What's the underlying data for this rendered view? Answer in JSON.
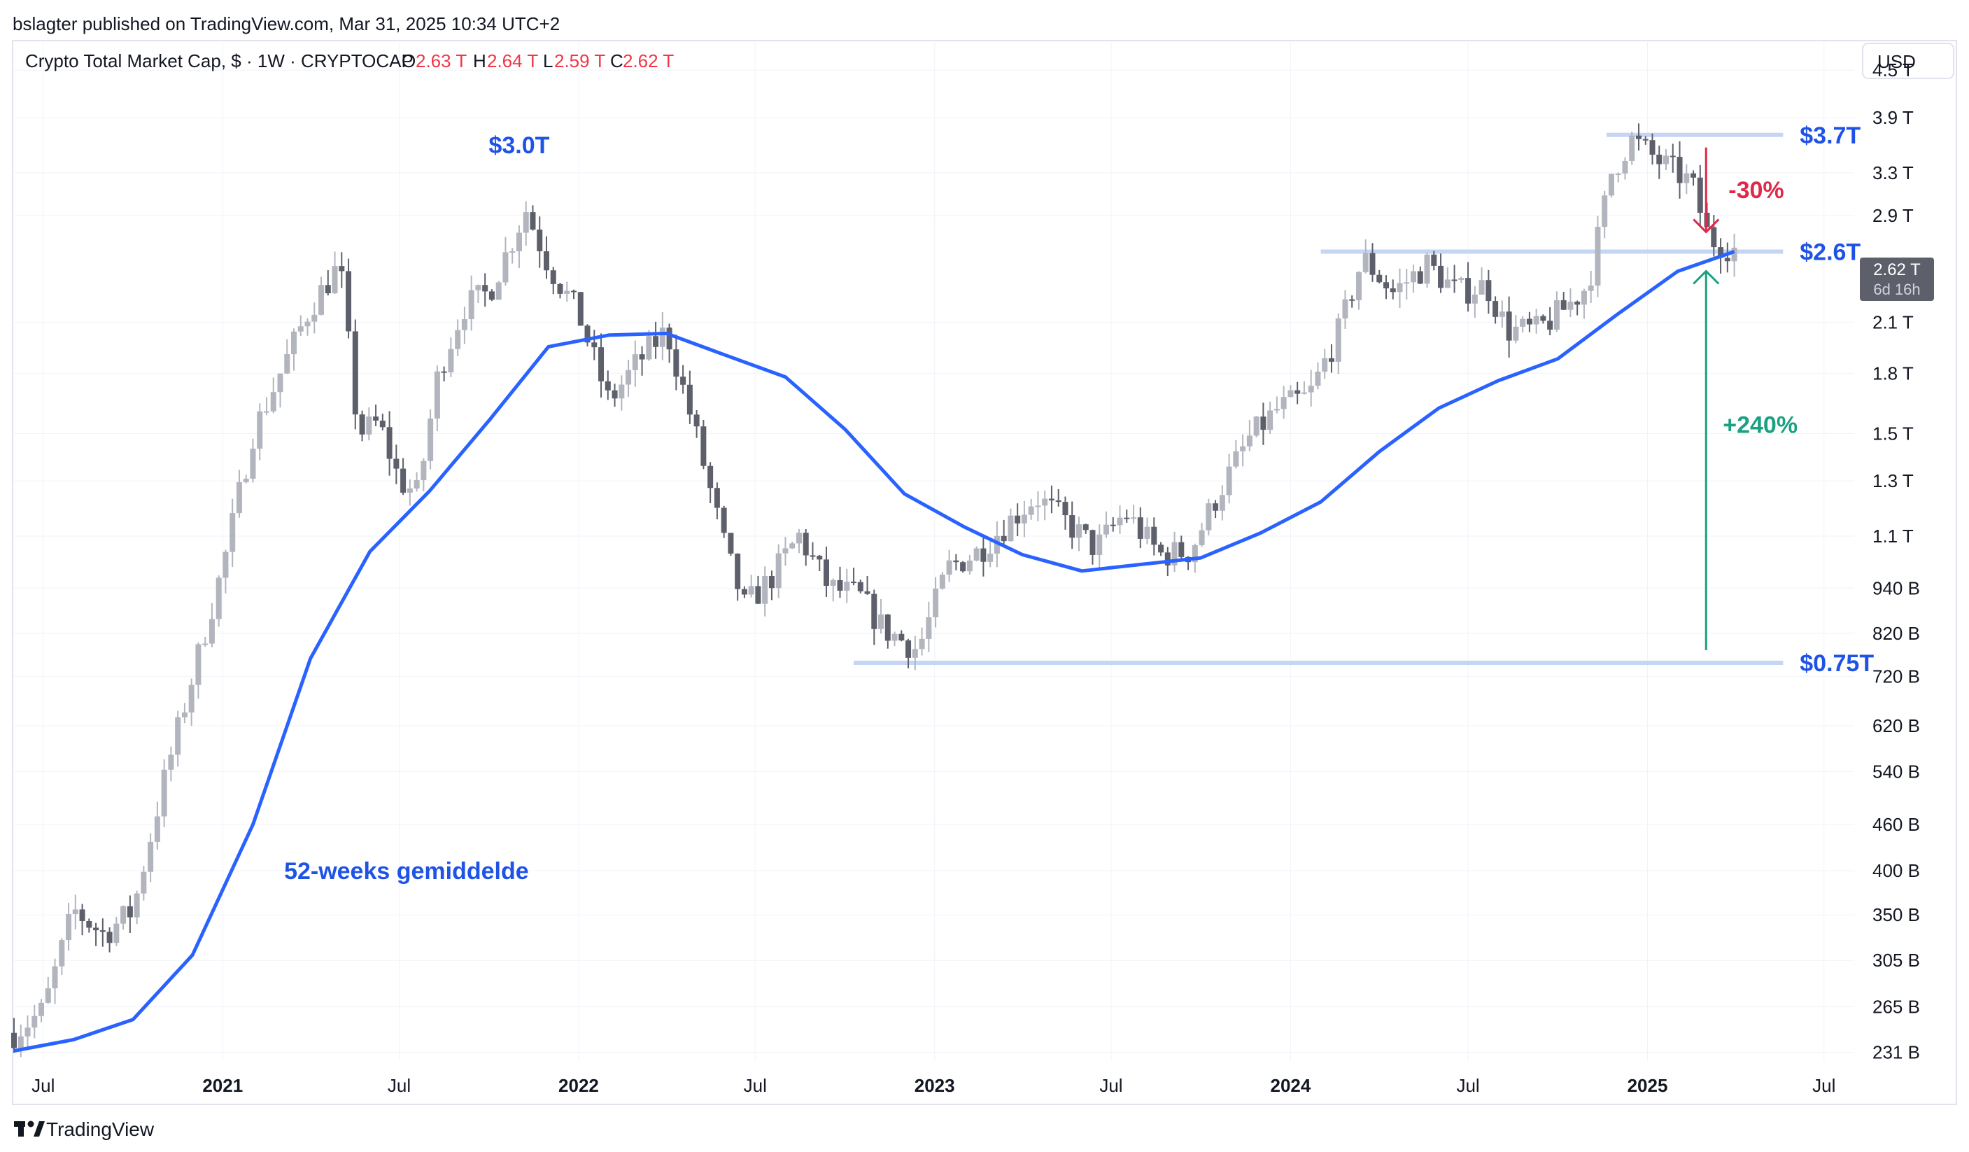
{
  "publisher": "bslagter published on TradingView.com, Mar 31, 2025 10:34 UTC+2",
  "header": {
    "symbol": "Crypto Total Market Cap, $ · 1W · CRYPTOCAP",
    "o_label": "O",
    "o_value": "2.63 T",
    "h_label": "H",
    "h_value": "2.64 T",
    "l_label": "L",
    "l_value": "2.59 T",
    "c_label": "C",
    "c_value": "2.62 T"
  },
  "currency_button": "USD",
  "price_badge": {
    "value": "2.62 T",
    "countdown": "6d 16h"
  },
  "logo_text": "TradingView",
  "colors": {
    "candle": "#b2b5be",
    "candle_dark": "#5d606b",
    "ma": "#2962ff",
    "level_line": "#c5d6f5",
    "label_blue": "#1e53e5",
    "down_red": "#e0284a",
    "up_green": "#1aa181",
    "grid": "#f0f3fa"
  },
  "chart_data": {
    "type": "candlestick",
    "title": "",
    "y_scale": "log",
    "ylim": [
      225,
      4900
    ],
    "y_unit": "B",
    "x_range": [
      "2020-06-01",
      "2025-08-01"
    ],
    "y_ticks": [
      {
        "label": "4.5 T",
        "value": 4500
      },
      {
        "label": "3.9 T",
        "value": 3900
      },
      {
        "label": "3.3 T",
        "value": 3300
      },
      {
        "label": "2.9 T",
        "value": 2900
      },
      {
        "label": "2.1 T",
        "value": 2100
      },
      {
        "label": "1.8 T",
        "value": 1800
      },
      {
        "label": "1.5 T",
        "value": 1500
      },
      {
        "label": "1.3 T",
        "value": 1300
      },
      {
        "label": "1.1 T",
        "value": 1100
      },
      {
        "label": "940 B",
        "value": 940
      },
      {
        "label": "820 B",
        "value": 820
      },
      {
        "label": "720 B",
        "value": 720
      },
      {
        "label": "620 B",
        "value": 620
      },
      {
        "label": "540 B",
        "value": 540
      },
      {
        "label": "460 B",
        "value": 460
      },
      {
        "label": "400 B",
        "value": 400
      },
      {
        "label": "350 B",
        "value": 350
      },
      {
        "label": "305 B",
        "value": 305
      },
      {
        "label": "265 B",
        "value": 265
      },
      {
        "label": "231 B",
        "value": 231
      }
    ],
    "x_ticks": [
      {
        "label": "Jul",
        "date": "2020-07-01"
      },
      {
        "label": "2021",
        "date": "2021-01-01"
      },
      {
        "label": "Jul",
        "date": "2021-07-01"
      },
      {
        "label": "2022",
        "date": "2022-01-01"
      },
      {
        "label": "Jul",
        "date": "2022-07-01"
      },
      {
        "label": "2023",
        "date": "2023-01-01"
      },
      {
        "label": "Jul",
        "date": "2023-07-01"
      },
      {
        "label": "2024",
        "date": "2024-01-01"
      },
      {
        "label": "Jul",
        "date": "2024-07-01"
      },
      {
        "label": "2025",
        "date": "2025-01-01"
      },
      {
        "label": "Jul",
        "date": "2025-07-01"
      }
    ],
    "price_path": [
      [
        "2020-06-01",
        245
      ],
      [
        "2020-07-01",
        262
      ],
      [
        "2020-08-01",
        355
      ],
      [
        "2020-09-01",
        330
      ],
      [
        "2020-10-01",
        355
      ],
      [
        "2020-11-01",
        520
      ],
      [
        "2020-12-01",
        720
      ],
      [
        "2021-01-01",
        1000
      ],
      [
        "2021-02-01",
        1500
      ],
      [
        "2021-03-01",
        1800
      ],
      [
        "2021-04-01",
        2200
      ],
      [
        "2021-05-01",
        2500
      ],
      [
        "2021-05-20",
        1500
      ],
      [
        "2021-06-10",
        1550
      ],
      [
        "2021-07-01",
        1300
      ],
      [
        "2021-07-20",
        1250
      ],
      [
        "2021-08-10",
        1800
      ],
      [
        "2021-09-05",
        2200
      ],
      [
        "2021-10-01",
        2300
      ],
      [
        "2021-11-08",
        2950
      ],
      [
        "2021-12-01",
        2500
      ],
      [
        "2022-01-01",
        2150
      ],
      [
        "2022-02-01",
        1650
      ],
      [
        "2022-03-01",
        1850
      ],
      [
        "2022-04-01",
        2050
      ],
      [
        "2022-05-01",
        1500
      ],
      [
        "2022-06-01",
        1050
      ],
      [
        "2022-06-20",
        890
      ],
      [
        "2022-07-15",
        960
      ],
      [
        "2022-08-15",
        1100
      ],
      [
        "2022-09-15",
        940
      ],
      [
        "2022-10-15",
        920
      ],
      [
        "2022-11-10",
        830
      ],
      [
        "2022-12-15",
        780
      ],
      [
        "2023-01-15",
        1000
      ],
      [
        "2023-02-15",
        1050
      ],
      [
        "2023-03-15",
        1140
      ],
      [
        "2023-04-15",
        1240
      ],
      [
        "2023-05-15",
        1150
      ],
      [
        "2023-06-15",
        1060
      ],
      [
        "2023-07-15",
        1180
      ],
      [
        "2023-08-20",
        1040
      ],
      [
        "2023-09-20",
        1050
      ],
      [
        "2023-10-20",
        1260
      ],
      [
        "2023-11-20",
        1480
      ],
      [
        "2023-12-20",
        1620
      ],
      [
        "2024-01-20",
        1680
      ],
      [
        "2024-02-20",
        2050
      ],
      [
        "2024-03-15",
        2550
      ],
      [
        "2024-04-15",
        2300
      ],
      [
        "2024-05-20",
        2500
      ],
      [
        "2024-06-20",
        2300
      ],
      [
        "2024-07-20",
        2350
      ],
      [
        "2024-08-10",
        2050
      ],
      [
        "2024-09-10",
        2050
      ],
      [
        "2024-10-10",
        2200
      ],
      [
        "2024-11-01",
        2350
      ],
      [
        "2024-11-25",
        3300
      ],
      [
        "2024-12-15",
        3650
      ],
      [
        "2025-01-15",
        3400
      ],
      [
        "2025-02-15",
        3200
      ],
      [
        "2025-03-05",
        2700
      ],
      [
        "2025-03-31",
        2620
      ]
    ],
    "moving_average": {
      "name": "52-weeks gemiddelde",
      "points": [
        [
          "2020-06-01",
          232
        ],
        [
          "2020-08-01",
          240
        ],
        [
          "2020-10-01",
          255
        ],
        [
          "2020-12-01",
          310
        ],
        [
          "2021-02-01",
          460
        ],
        [
          "2021-04-01",
          760
        ],
        [
          "2021-06-01",
          1050
        ],
        [
          "2021-08-01",
          1260
        ],
        [
          "2021-10-01",
          1560
        ],
        [
          "2021-12-01",
          1950
        ],
        [
          "2022-02-01",
          2020
        ],
        [
          "2022-04-01",
          2030
        ],
        [
          "2022-06-01",
          1900
        ],
        [
          "2022-08-01",
          1780
        ],
        [
          "2022-10-01",
          1520
        ],
        [
          "2022-12-01",
          1250
        ],
        [
          "2023-02-01",
          1130
        ],
        [
          "2023-04-01",
          1040
        ],
        [
          "2023-06-01",
          990
        ],
        [
          "2023-08-01",
          1010
        ],
        [
          "2023-10-01",
          1030
        ],
        [
          "2023-12-01",
          1110
        ],
        [
          "2024-02-01",
          1220
        ],
        [
          "2024-04-01",
          1420
        ],
        [
          "2024-06-01",
          1620
        ],
        [
          "2024-08-01",
          1760
        ],
        [
          "2024-10-01",
          1880
        ],
        [
          "2024-12-01",
          2150
        ],
        [
          "2025-02-01",
          2450
        ],
        [
          "2025-03-31",
          2600
        ]
      ]
    },
    "levels": [
      {
        "label": "$3.7T",
        "value": 3700,
        "from": "2024-11-20",
        "to": "2025-05-20"
      },
      {
        "label": "$2.6T",
        "value": 2600,
        "from": "2024-02-01",
        "to": "2025-05-20"
      },
      {
        "label": "$0.75T",
        "value": 750,
        "from": "2022-10-10",
        "to": "2025-05-20"
      }
    ],
    "annotations": {
      "ath_2021": {
        "label": "$3.0T",
        "date": "2021-11-01",
        "value": 3500
      },
      "drawdown": {
        "label": "-30%",
        "from": 3700,
        "to": 2600,
        "date": "2025-05-20"
      },
      "rally": {
        "label": "+240%",
        "from": 750,
        "to": 2600,
        "date": "2025-05-20"
      },
      "ma_label": {
        "label": "52-weeks gemiddelde",
        "date": "2021-03-05",
        "value": 390
      }
    }
  }
}
